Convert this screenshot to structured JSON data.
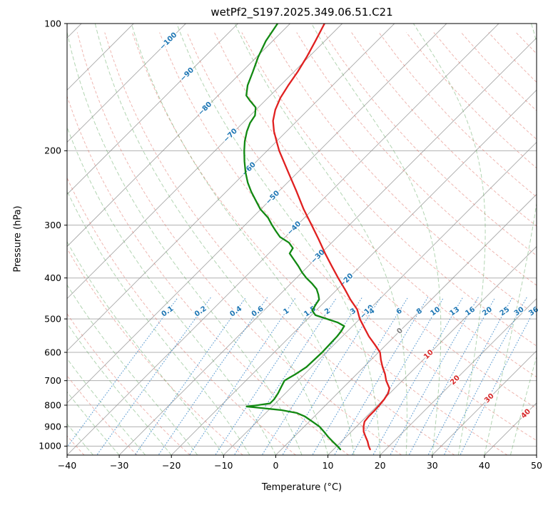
{
  "chart_data": {
    "type": "line",
    "title": "wetPf2_S197.2025.349.06.51.C21",
    "xlabel": "Temperature (°C)",
    "ylabel": "Pressure (hPa)",
    "x_range_c": [
      -40,
      50
    ],
    "pressure_range_hpa": [
      100,
      1050
    ],
    "skew_deg": 45,
    "grid": true,
    "x_ticks": [
      -40,
      -30,
      -20,
      -10,
      0,
      10,
      20,
      30,
      40,
      50
    ],
    "p_ticks": [
      100,
      200,
      300,
      400,
      500,
      600,
      700,
      800,
      900,
      1000
    ],
    "isotherms_c": {
      "start": -150,
      "end": 50,
      "step": 10
    },
    "dry_adiabats_c": {
      "start": -40,
      "end": 190,
      "step": 10
    },
    "moist_adiabats_c": {
      "start": -40,
      "end": 50,
      "step": 5
    },
    "mixing_ratio_g_kg": [
      0.1,
      0.2,
      0.4,
      0.6,
      1,
      1.5,
      2,
      3,
      4,
      6,
      8,
      10,
      13,
      16,
      20,
      25,
      30,
      36
    ],
    "mixing_ratio_label_p": 480,
    "isotherm_labels": [
      {
        "value": -100,
        "p": 110,
        "color": "#1f77b4"
      },
      {
        "value": -90,
        "p": 132,
        "color": "#1f77b4"
      },
      {
        "value": -80,
        "p": 159,
        "color": "#1f77b4"
      },
      {
        "value": -70,
        "p": 184,
        "color": "#1f77b4"
      },
      {
        "value": -60,
        "p": 221,
        "color": "#1f77b4"
      },
      {
        "value": -50,
        "p": 258,
        "color": "#1f77b4"
      },
      {
        "value": -40,
        "p": 305,
        "color": "#1f77b4"
      },
      {
        "value": -30,
        "p": 356,
        "color": "#1f77b4"
      },
      {
        "value": -20,
        "p": 405,
        "color": "#1f77b4"
      },
      {
        "value": -10,
        "p": 481,
        "color": "#1f77b4"
      },
      {
        "value": 0,
        "p": 534,
        "color": "#7f7f7f"
      },
      {
        "value": 10,
        "p": 607,
        "color": "#d62728"
      },
      {
        "value": 20,
        "p": 698,
        "color": "#d62728"
      },
      {
        "value": 30,
        "p": 770,
        "color": "#d62728"
      },
      {
        "value": 40,
        "p": 838,
        "color": "#d62728"
      }
    ],
    "colors": {
      "grid": "#b0b0b0",
      "isotherm": "#8c8c8c",
      "dry_adiabat": "#e0756a",
      "moist_adiabat": "#5fa85f",
      "mixing_ratio": "#3b87c8",
      "frame": "#000000",
      "tick_text": "#000000"
    },
    "series": [
      {
        "name": "temperature",
        "color": "#e02020",
        "width": 2.3,
        "points": [
          [
            1018,
            17.0
          ],
          [
            1000,
            16.1
          ],
          [
            975,
            15.0
          ],
          [
            950,
            13.7
          ],
          [
            925,
            12.4
          ],
          [
            900,
            11.4
          ],
          [
            875,
            10.6
          ],
          [
            850,
            10.4
          ],
          [
            825,
            10.4
          ],
          [
            800,
            10.3
          ],
          [
            775,
            10.1
          ],
          [
            750,
            9.7
          ],
          [
            730,
            9.0
          ],
          [
            700,
            6.9
          ],
          [
            675,
            5.4
          ],
          [
            650,
            3.6
          ],
          [
            625,
            1.9
          ],
          [
            600,
            0.3
          ],
          [
            575,
            -2.2
          ],
          [
            550,
            -4.9
          ],
          [
            525,
            -7.4
          ],
          [
            500,
            -10.0
          ],
          [
            475,
            -12.3
          ],
          [
            450,
            -15.5
          ],
          [
            425,
            -18.6
          ],
          [
            400,
            -22.0
          ],
          [
            375,
            -25.5
          ],
          [
            350,
            -29.2
          ],
          [
            325,
            -33.0
          ],
          [
            300,
            -37.2
          ],
          [
            275,
            -41.8
          ],
          [
            250,
            -46.5
          ],
          [
            225,
            -51.8
          ],
          [
            200,
            -57.7
          ],
          [
            190,
            -60.0
          ],
          [
            180,
            -62.4
          ],
          [
            170,
            -64.6
          ],
          [
            160,
            -66.3
          ],
          [
            150,
            -67.6
          ],
          [
            140,
            -68.5
          ],
          [
            130,
            -69.3
          ],
          [
            120,
            -70.4
          ],
          [
            110,
            -71.8
          ],
          [
            100,
            -73.4
          ]
        ]
      },
      {
        "name": "dewpoint",
        "color": "#128912",
        "width": 2.3,
        "points": [
          [
            1018,
            11.3
          ],
          [
            1000,
            10.1
          ],
          [
            975,
            8.3
          ],
          [
            950,
            6.5
          ],
          [
            925,
            4.8
          ],
          [
            900,
            3.0
          ],
          [
            875,
            0.6
          ],
          [
            850,
            -1.9
          ],
          [
            835,
            -4.0
          ],
          [
            822,
            -7.5
          ],
          [
            812,
            -12.0
          ],
          [
            806,
            -14.9
          ],
          [
            800,
            -13.0
          ],
          [
            792,
            -11.0
          ],
          [
            775,
            -11.0
          ],
          [
            750,
            -11.4
          ],
          [
            725,
            -12.0
          ],
          [
            700,
            -12.6
          ],
          [
            688,
            -12.2
          ],
          [
            675,
            -11.7
          ],
          [
            650,
            -11.0
          ],
          [
            625,
            -10.9
          ],
          [
            600,
            -10.8
          ],
          [
            575,
            -10.9
          ],
          [
            550,
            -11.0
          ],
          [
            535,
            -11.2
          ],
          [
            520,
            -11.6
          ],
          [
            510,
            -13.5
          ],
          [
            500,
            -16.3
          ],
          [
            490,
            -19.2
          ],
          [
            478,
            -20.7
          ],
          [
            462,
            -21.2
          ],
          [
            450,
            -21.5
          ],
          [
            438,
            -22.6
          ],
          [
            425,
            -24.0
          ],
          [
            412,
            -26.0
          ],
          [
            400,
            -28.1
          ],
          [
            388,
            -30.0
          ],
          [
            375,
            -31.9
          ],
          [
            362,
            -34.0
          ],
          [
            350,
            -36.0
          ],
          [
            340,
            -36.4
          ],
          [
            330,
            -38.2
          ],
          [
            320,
            -41.0
          ],
          [
            310,
            -42.9
          ],
          [
            300,
            -44.8
          ],
          [
            288,
            -47.0
          ],
          [
            275,
            -50.1
          ],
          [
            262,
            -52.7
          ],
          [
            250,
            -55.2
          ],
          [
            238,
            -57.6
          ],
          [
            225,
            -60.0
          ],
          [
            212,
            -62.3
          ],
          [
            200,
            -64.4
          ],
          [
            190,
            -66.1
          ],
          [
            180,
            -67.6
          ],
          [
            172,
            -68.6
          ],
          [
            165,
            -69.1
          ],
          [
            158,
            -70.5
          ],
          [
            152,
            -73.0
          ],
          [
            148,
            -74.6
          ],
          [
            140,
            -76.3
          ],
          [
            130,
            -77.9
          ],
          [
            120,
            -79.7
          ],
          [
            110,
            -81.3
          ],
          [
            100,
            -82.4
          ]
        ]
      }
    ]
  }
}
